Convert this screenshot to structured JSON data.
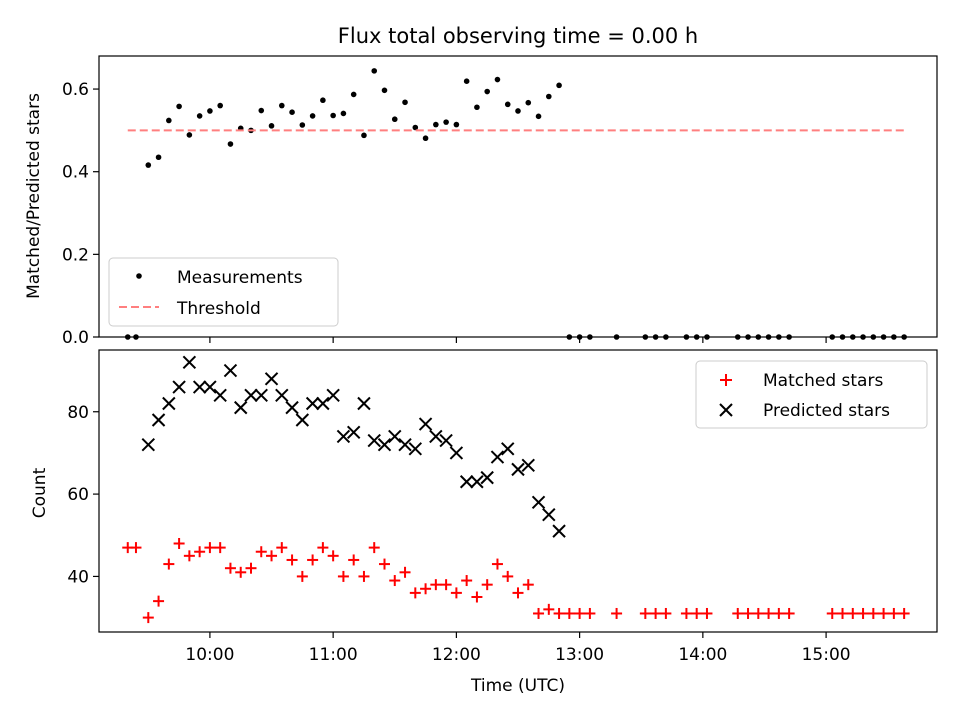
{
  "title": "Flux total observing time = 0.00 h",
  "colors": {
    "measurements": "#000000",
    "threshold": "#ff7f7f",
    "matched": "#ff0000",
    "predicted": "#000000"
  },
  "chart_data": [
    {
      "type": "scatter",
      "ylabel": "Matched/Predicted stars",
      "xlim": [
        "09:06",
        "15:54"
      ],
      "ylim": [
        0,
        0.68
      ],
      "yticks": [
        "0.0",
        "0.2",
        "0.4",
        "0.6"
      ],
      "legend_placement": "lower-left",
      "series": [
        {
          "name": "Measurements",
          "kind": "scatter",
          "marker": "dot",
          "color": "#000000",
          "points": [
            [
              "09:20",
              0.0
            ],
            [
              "09:24",
              0.0
            ],
            [
              "09:30",
              0.416
            ],
            [
              "09:35",
              0.435
            ],
            [
              "09:40",
              0.524
            ],
            [
              "09:45",
              0.558
            ],
            [
              "09:50",
              0.489
            ],
            [
              "09:55",
              0.535
            ],
            [
              "10:00",
              0.547
            ],
            [
              "10:05",
              0.56
            ],
            [
              "10:10",
              0.467
            ],
            [
              "10:15",
              0.505
            ],
            [
              "10:20",
              0.5
            ],
            [
              "10:25",
              0.548
            ],
            [
              "10:30",
              0.511
            ],
            [
              "10:35",
              0.56
            ],
            [
              "10:40",
              0.544
            ],
            [
              "10:45",
              0.513
            ],
            [
              "10:50",
              0.535
            ],
            [
              "10:55",
              0.573
            ],
            [
              "11:00",
              0.536
            ],
            [
              "11:05",
              0.541
            ],
            [
              "11:10",
              0.587
            ],
            [
              "11:15",
              0.488
            ],
            [
              "11:20",
              0.644
            ],
            [
              "11:25",
              0.597
            ],
            [
              "11:30",
              0.527
            ],
            [
              "11:35",
              0.568
            ],
            [
              "11:40",
              0.507
            ],
            [
              "11:45",
              0.481
            ],
            [
              "11:50",
              0.514
            ],
            [
              "11:55",
              0.52
            ],
            [
              "12:00",
              0.514
            ],
            [
              "12:05",
              0.619
            ],
            [
              "12:10",
              0.556
            ],
            [
              "12:15",
              0.594
            ],
            [
              "12:20",
              0.623
            ],
            [
              "12:25",
              0.563
            ],
            [
              "12:30",
              0.547
            ],
            [
              "12:35",
              0.567
            ],
            [
              "12:40",
              0.534
            ],
            [
              "12:45",
              0.582
            ],
            [
              "12:50",
              0.609
            ],
            [
              "12:55",
              0.0
            ],
            [
              "13:00",
              0.0
            ],
            [
              "13:05",
              0.0
            ],
            [
              "13:18",
              0.0
            ],
            [
              "13:32",
              0.0
            ],
            [
              "13:37",
              0.0
            ],
            [
              "13:42",
              0.0
            ],
            [
              "13:52",
              0.0
            ],
            [
              "13:57",
              0.0
            ],
            [
              "14:02",
              0.0
            ],
            [
              "14:17",
              0.0
            ],
            [
              "14:22",
              0.0
            ],
            [
              "14:27",
              0.0
            ],
            [
              "14:32",
              0.0
            ],
            [
              "14:37",
              0.0
            ],
            [
              "14:42",
              0.0
            ],
            [
              "15:03",
              0.0
            ],
            [
              "15:08",
              0.0
            ],
            [
              "15:13",
              0.0
            ],
            [
              "15:18",
              0.0
            ],
            [
              "15:23",
              0.0
            ],
            [
              "15:28",
              0.0
            ],
            [
              "15:33",
              0.0
            ],
            [
              "15:38",
              0.0
            ]
          ]
        },
        {
          "name": "Threshold",
          "kind": "line",
          "style": "dashed",
          "color": "#ff7f7f",
          "points": [
            [
              "09:20",
              0.5
            ],
            [
              "15:38",
              0.5
            ]
          ]
        }
      ]
    },
    {
      "type": "scatter",
      "xlabel": "Time (UTC)",
      "ylabel": "Count",
      "xlim": [
        "09:06",
        "15:54"
      ],
      "ylim": [
        26.5,
        95
      ],
      "xticks": [
        "10:00",
        "11:00",
        "12:00",
        "13:00",
        "14:00",
        "15:00"
      ],
      "yticks": [
        "40",
        "60",
        "80"
      ],
      "legend_placement": "top-right",
      "series": [
        {
          "name": "Matched stars",
          "marker": "plus",
          "color": "#ff0000",
          "points": [
            [
              "09:20",
              47
            ],
            [
              "09:24",
              47
            ],
            [
              "09:30",
              30
            ],
            [
              "09:35",
              34
            ],
            [
              "09:40",
              43
            ],
            [
              "09:45",
              48
            ],
            [
              "09:50",
              45
            ],
            [
              "09:55",
              46
            ],
            [
              "10:00",
              47
            ],
            [
              "10:05",
              47
            ],
            [
              "10:10",
              42
            ],
            [
              "10:15",
              41
            ],
            [
              "10:20",
              42
            ],
            [
              "10:25",
              46
            ],
            [
              "10:30",
              45
            ],
            [
              "10:35",
              47
            ],
            [
              "10:40",
              44
            ],
            [
              "10:45",
              40
            ],
            [
              "10:50",
              44
            ],
            [
              "10:55",
              47
            ],
            [
              "11:00",
              45
            ],
            [
              "11:05",
              40
            ],
            [
              "11:10",
              44
            ],
            [
              "11:15",
              40
            ],
            [
              "11:20",
              47
            ],
            [
              "11:25",
              43
            ],
            [
              "11:30",
              39
            ],
            [
              "11:35",
              41
            ],
            [
              "11:40",
              36
            ],
            [
              "11:45",
              37
            ],
            [
              "11:50",
              38
            ],
            [
              "11:55",
              38
            ],
            [
              "12:00",
              36
            ],
            [
              "12:05",
              39
            ],
            [
              "12:10",
              35
            ],
            [
              "12:15",
              38
            ],
            [
              "12:20",
              43
            ],
            [
              "12:25",
              40
            ],
            [
              "12:30",
              36
            ],
            [
              "12:35",
              38
            ],
            [
              "12:40",
              31
            ],
            [
              "12:45",
              32
            ],
            [
              "12:50",
              31
            ],
            [
              "12:55",
              31
            ],
            [
              "13:00",
              31
            ],
            [
              "13:05",
              31
            ],
            [
              "13:18",
              31
            ],
            [
              "13:32",
              31
            ],
            [
              "13:37",
              31
            ],
            [
              "13:42",
              31
            ],
            [
              "13:52",
              31
            ],
            [
              "13:57",
              31
            ],
            [
              "14:02",
              31
            ],
            [
              "14:17",
              31
            ],
            [
              "14:22",
              31
            ],
            [
              "14:27",
              31
            ],
            [
              "14:32",
              31
            ],
            [
              "14:37",
              31
            ],
            [
              "14:42",
              31
            ],
            [
              "15:03",
              31
            ],
            [
              "15:08",
              31
            ],
            [
              "15:13",
              31
            ],
            [
              "15:18",
              31
            ],
            [
              "15:23",
              31
            ],
            [
              "15:28",
              31
            ],
            [
              "15:33",
              31
            ],
            [
              "15:38",
              31
            ]
          ]
        },
        {
          "name": "Predicted stars",
          "marker": "x",
          "color": "#000000",
          "points": [
            [
              "09:30",
              72
            ],
            [
              "09:35",
              78
            ],
            [
              "09:40",
              82
            ],
            [
              "09:45",
              86
            ],
            [
              "09:50",
              92
            ],
            [
              "09:55",
              86
            ],
            [
              "10:00",
              86
            ],
            [
              "10:05",
              84
            ],
            [
              "10:10",
              90
            ],
            [
              "10:15",
              81
            ],
            [
              "10:20",
              84
            ],
            [
              "10:25",
              84
            ],
            [
              "10:30",
              88
            ],
            [
              "10:35",
              84
            ],
            [
              "10:40",
              81
            ],
            [
              "10:45",
              78
            ],
            [
              "10:50",
              82
            ],
            [
              "10:55",
              82
            ],
            [
              "11:00",
              84
            ],
            [
              "11:05",
              74
            ],
            [
              "11:10",
              75
            ],
            [
              "11:15",
              82
            ],
            [
              "11:20",
              73
            ],
            [
              "11:25",
              72
            ],
            [
              "11:30",
              74
            ],
            [
              "11:35",
              72
            ],
            [
              "11:40",
              71
            ],
            [
              "11:45",
              77
            ],
            [
              "11:50",
              74
            ],
            [
              "11:55",
              73
            ],
            [
              "12:00",
              70
            ],
            [
              "12:05",
              63
            ],
            [
              "12:10",
              63
            ],
            [
              "12:15",
              64
            ],
            [
              "12:20",
              69
            ],
            [
              "12:25",
              71
            ],
            [
              "12:30",
              66
            ],
            [
              "12:35",
              67
            ],
            [
              "12:40",
              58
            ],
            [
              "12:45",
              55
            ],
            [
              "12:50",
              51
            ]
          ]
        }
      ]
    }
  ]
}
